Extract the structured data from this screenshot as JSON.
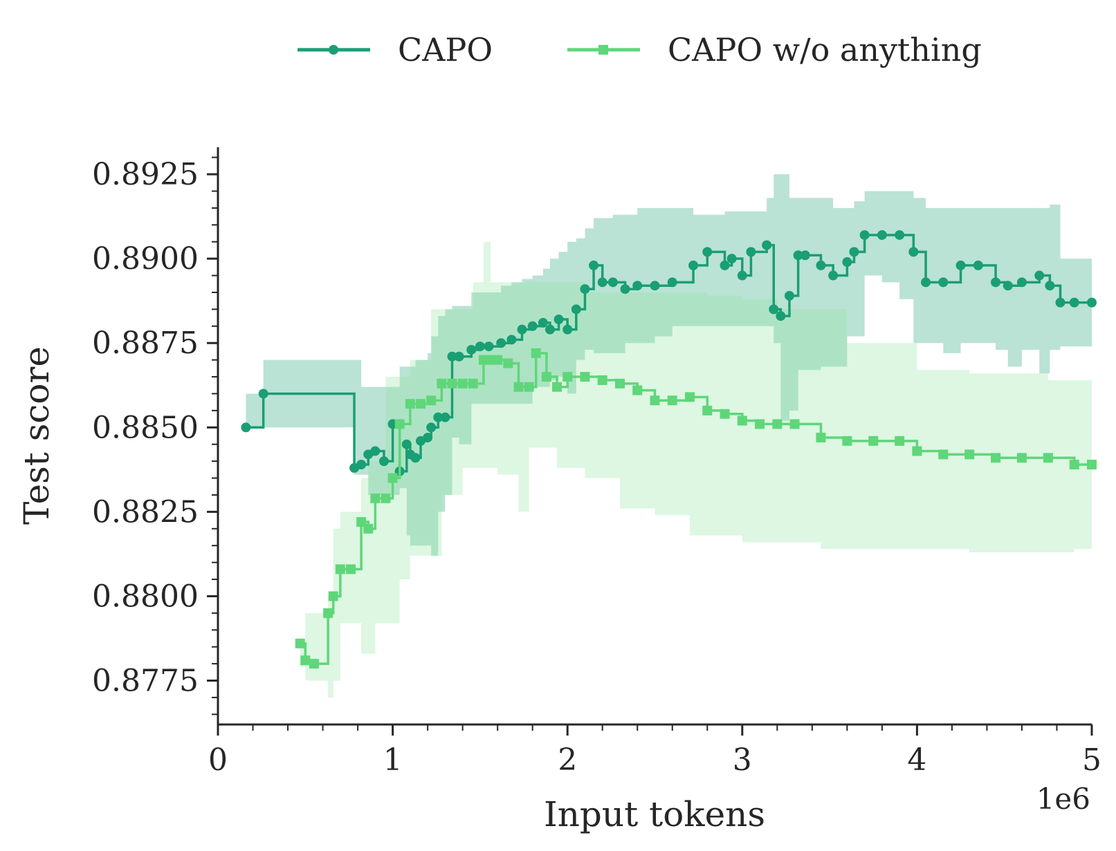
{
  "chart_data": {
    "type": "line",
    "drawstyle": "steps-post",
    "xlabel": "Input tokens",
    "ylabel": "Test score",
    "x_offset_label": "1e6",
    "xlim": [
      0,
      5
    ],
    "ylim": [
      0.8762,
      0.8933
    ],
    "x_ticks": [
      0,
      1,
      2,
      3,
      4,
      5
    ],
    "x_tick_labels": [
      "0",
      "1",
      "2",
      "3",
      "4",
      "5"
    ],
    "y_ticks": [
      0.8775,
      0.88,
      0.8825,
      0.885,
      0.8875,
      0.89,
      0.8925
    ],
    "y_tick_labels": [
      "0.8775",
      "0.8800",
      "0.8825",
      "0.8850",
      "0.8875",
      "0.8900",
      "0.8925"
    ],
    "grid": false,
    "legend_position": "top-center",
    "series": [
      {
        "name": "CAPO",
        "color": "#1a9e74",
        "band_color": "#1a9e74",
        "marker": "circle",
        "x": [
          0.16,
          0.26,
          0.78,
          0.82,
          0.86,
          0.9,
          0.95,
          1.0,
          1.04,
          1.08,
          1.1,
          1.13,
          1.16,
          1.2,
          1.22,
          1.26,
          1.3,
          1.34,
          1.38,
          1.45,
          1.5,
          1.55,
          1.62,
          1.68,
          1.74,
          1.8,
          1.86,
          1.9,
          1.95,
          2.0,
          2.05,
          2.1,
          2.15,
          2.2,
          2.26,
          2.33,
          2.4,
          2.5,
          2.6,
          2.72,
          2.8,
          2.9,
          2.94,
          3.0,
          3.05,
          3.14,
          3.18,
          3.22,
          3.27,
          3.32,
          3.36,
          3.45,
          3.52,
          3.6,
          3.64,
          3.7,
          3.8,
          3.9,
          3.98,
          4.05,
          4.15,
          4.25,
          4.35,
          4.45,
          4.52,
          4.6,
          4.7,
          4.76,
          4.82,
          4.9,
          5.0
        ],
        "y": [
          0.885,
          0.886,
          0.8838,
          0.8839,
          0.8842,
          0.8843,
          0.884,
          0.8851,
          0.8837,
          0.8845,
          0.8842,
          0.8841,
          0.8846,
          0.8847,
          0.885,
          0.8853,
          0.8853,
          0.8871,
          0.8871,
          0.8873,
          0.8874,
          0.8874,
          0.8875,
          0.8876,
          0.8879,
          0.888,
          0.8881,
          0.8879,
          0.8882,
          0.8879,
          0.8885,
          0.8891,
          0.8898,
          0.8893,
          0.8893,
          0.8891,
          0.8892,
          0.8892,
          0.8893,
          0.8898,
          0.8902,
          0.8898,
          0.89,
          0.8895,
          0.8902,
          0.8904,
          0.8885,
          0.8883,
          0.8889,
          0.8901,
          0.8901,
          0.8898,
          0.8895,
          0.8899,
          0.8902,
          0.8907,
          0.8907,
          0.8907,
          0.8902,
          0.8893,
          0.8893,
          0.8898,
          0.8898,
          0.8893,
          0.8892,
          0.8893,
          0.8895,
          0.8892,
          0.8887,
          0.8887,
          0.8887
        ],
        "lower": [
          0.885,
          0.885,
          0.8836,
          0.8836,
          0.883,
          0.883,
          0.883,
          0.883,
          0.8832,
          0.8818,
          0.8815,
          0.8815,
          0.8815,
          0.8815,
          0.8812,
          0.8825,
          0.883,
          0.8847,
          0.8845,
          0.8857,
          0.8857,
          0.8857,
          0.8857,
          0.8857,
          0.8857,
          0.8862,
          0.8862,
          0.8864,
          0.8865,
          0.886,
          0.887,
          0.8873,
          0.8872,
          0.8872,
          0.8872,
          0.8875,
          0.8875,
          0.8877,
          0.888,
          0.888,
          0.888,
          0.888,
          0.888,
          0.888,
          0.888,
          0.888,
          0.8875,
          0.8852,
          0.8855,
          0.8867,
          0.8867,
          0.8868,
          0.8868,
          0.8877,
          0.8877,
          0.8895,
          0.8893,
          0.8888,
          0.8875,
          0.8875,
          0.8872,
          0.8875,
          0.8875,
          0.8873,
          0.8868,
          0.8873,
          0.8866,
          0.8873,
          0.8874,
          0.8874,
          0.8874
        ],
        "upper": [
          0.886,
          0.887,
          0.887,
          0.8862,
          0.8862,
          0.8862,
          0.8862,
          0.8862,
          0.8868,
          0.8868,
          0.8868,
          0.887,
          0.887,
          0.8872,
          0.8877,
          0.8883,
          0.8885,
          0.8886,
          0.8886,
          0.889,
          0.889,
          0.889,
          0.8892,
          0.8893,
          0.8894,
          0.8895,
          0.8897,
          0.89,
          0.8902,
          0.8905,
          0.8906,
          0.8909,
          0.8912,
          0.8912,
          0.8913,
          0.8913,
          0.8915,
          0.8915,
          0.8915,
          0.8913,
          0.8913,
          0.8914,
          0.8914,
          0.8914,
          0.8914,
          0.8918,
          0.8925,
          0.8925,
          0.8918,
          0.8918,
          0.8918,
          0.8918,
          0.8915,
          0.8915,
          0.8917,
          0.892,
          0.892,
          0.892,
          0.8918,
          0.8915,
          0.8915,
          0.8915,
          0.8915,
          0.8915,
          0.8915,
          0.8915,
          0.8915,
          0.8916,
          0.89,
          0.89,
          0.89
        ]
      },
      {
        "name": "CAPO w/o anything",
        "color": "#5fd67a",
        "band_color": "#8ee5a0",
        "marker": "square",
        "x": [
          0.47,
          0.5,
          0.55,
          0.63,
          0.66,
          0.7,
          0.76,
          0.82,
          0.86,
          0.9,
          0.96,
          1.0,
          1.04,
          1.1,
          1.16,
          1.22,
          1.28,
          1.34,
          1.4,
          1.46,
          1.52,
          1.56,
          1.6,
          1.66,
          1.72,
          1.78,
          1.82,
          1.88,
          1.94,
          2.0,
          2.1,
          2.2,
          2.3,
          2.4,
          2.5,
          2.6,
          2.7,
          2.8,
          2.9,
          3.0,
          3.1,
          3.2,
          3.3,
          3.45,
          3.6,
          3.75,
          3.9,
          4.0,
          4.15,
          4.3,
          4.45,
          4.6,
          4.75,
          4.9,
          5.0
        ],
        "y": [
          0.8786,
          0.8781,
          0.878,
          0.8795,
          0.88,
          0.8808,
          0.8808,
          0.8822,
          0.882,
          0.8829,
          0.8829,
          0.8835,
          0.8851,
          0.8857,
          0.8857,
          0.8858,
          0.8863,
          0.8863,
          0.8863,
          0.8863,
          0.887,
          0.887,
          0.887,
          0.8869,
          0.8862,
          0.8862,
          0.8872,
          0.8865,
          0.8862,
          0.8865,
          0.8865,
          0.8864,
          0.8863,
          0.8861,
          0.8858,
          0.8858,
          0.8859,
          0.8855,
          0.8854,
          0.8852,
          0.8851,
          0.8851,
          0.8851,
          0.8847,
          0.8846,
          0.8846,
          0.8846,
          0.8843,
          0.8842,
          0.8842,
          0.8841,
          0.8841,
          0.8841,
          0.8839,
          0.8839
        ],
        "lower": [
          0.8779,
          0.8775,
          0.8775,
          0.877,
          0.8775,
          0.8792,
          0.8792,
          0.8783,
          0.8783,
          0.8792,
          0.8792,
          0.8792,
          0.8805,
          0.8812,
          0.8812,
          0.8812,
          0.883,
          0.883,
          0.8838,
          0.8838,
          0.8838,
          0.8838,
          0.8836,
          0.8836,
          0.8825,
          0.8844,
          0.8844,
          0.8844,
          0.8838,
          0.8838,
          0.8835,
          0.8835,
          0.8826,
          0.8826,
          0.8824,
          0.8824,
          0.8818,
          0.8818,
          0.8818,
          0.8816,
          0.8816,
          0.8816,
          0.8816,
          0.8814,
          0.8814,
          0.8814,
          0.8814,
          0.8814,
          0.8814,
          0.8813,
          0.8813,
          0.8813,
          0.8813,
          0.8814,
          0.8814
        ],
        "upper": [
          0.8786,
          0.8795,
          0.8795,
          0.88,
          0.882,
          0.8825,
          0.8825,
          0.8835,
          0.884,
          0.884,
          0.8865,
          0.8865,
          0.8865,
          0.887,
          0.887,
          0.8885,
          0.8885,
          0.8885,
          0.8885,
          0.8893,
          0.8905,
          0.8893,
          0.8893,
          0.8893,
          0.8893,
          0.8893,
          0.8893,
          0.8893,
          0.8893,
          0.8893,
          0.889,
          0.889,
          0.889,
          0.889,
          0.889,
          0.889,
          0.889,
          0.8889,
          0.8889,
          0.8888,
          0.8888,
          0.8885,
          0.8885,
          0.8885,
          0.8875,
          0.8875,
          0.8875,
          0.8867,
          0.8867,
          0.8866,
          0.8866,
          0.8866,
          0.8864,
          0.8864,
          0.8864
        ]
      }
    ]
  }
}
